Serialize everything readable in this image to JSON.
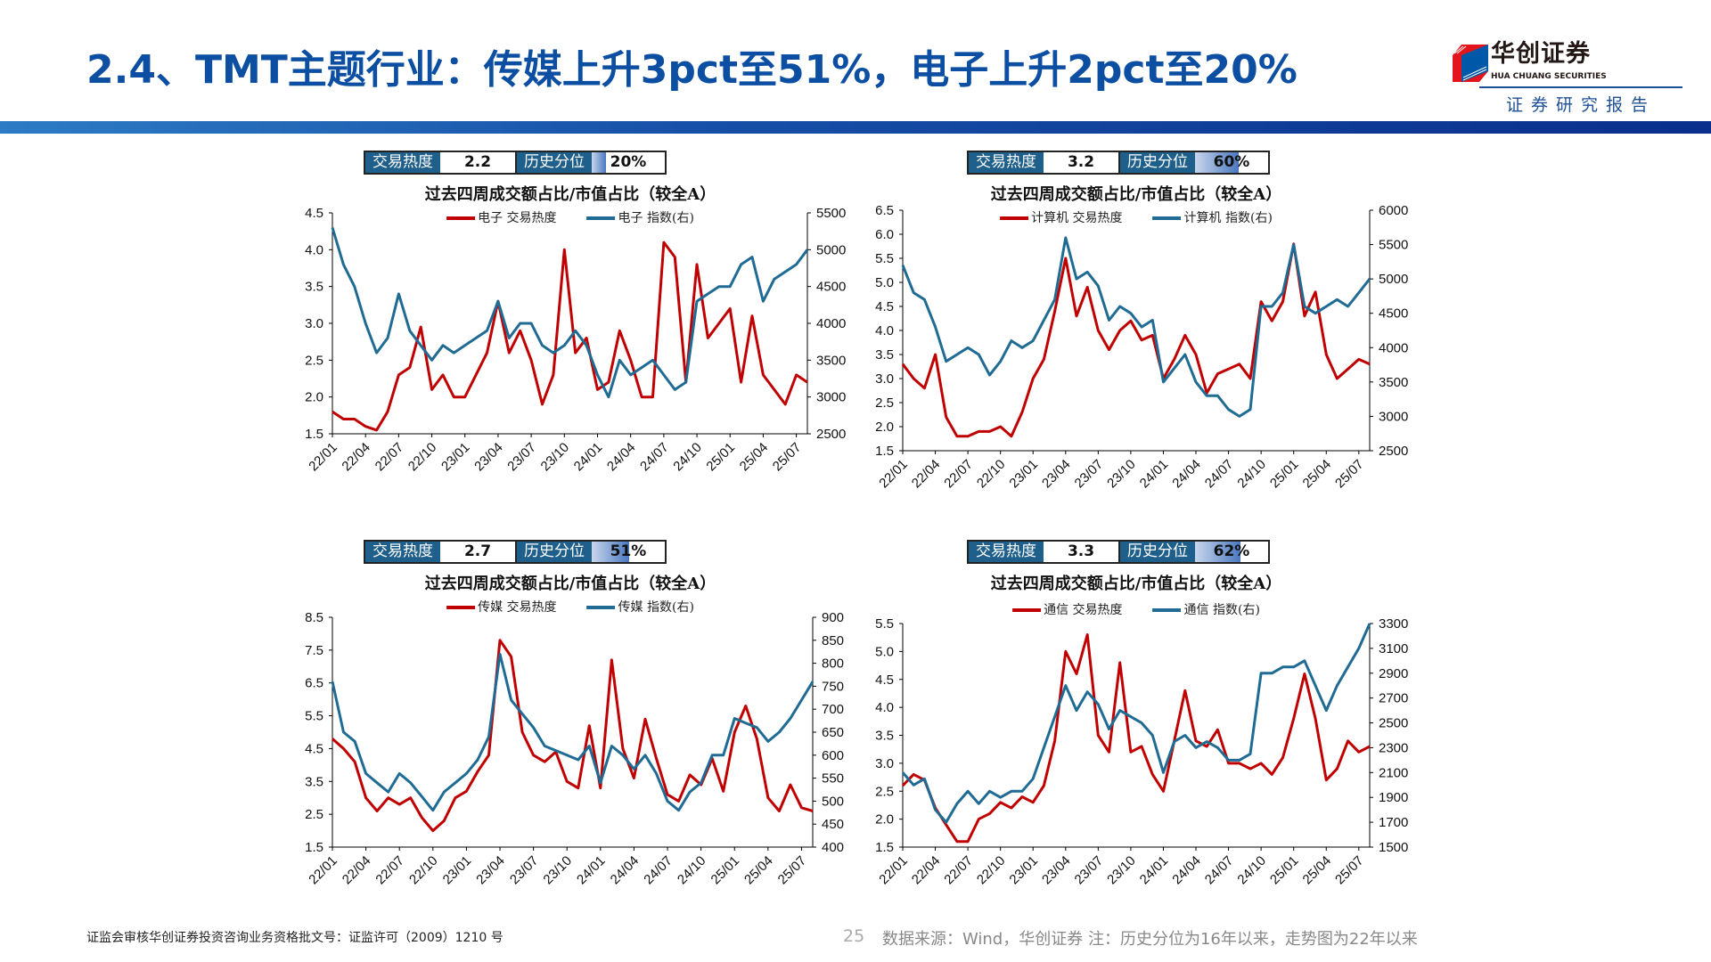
{
  "header": {
    "title": "2.4、TMT主题行业：传媒上升3pct至51%，电子上升2pct至20%",
    "logo_cn": "华创证券",
    "logo_en": "HUA CHUANG SECURITIES",
    "logo_sub": "证券研究报告"
  },
  "colors": {
    "title": "#0b4ea2",
    "heat_line": "#c00000",
    "index_line": "#1f6b94",
    "info_label_bg": "#1f5f8b"
  },
  "info_labels": {
    "heat": "交易热度",
    "percentile": "历史分位"
  },
  "footer": {
    "license": "证监会审核华创证券投资咨询业务资格批文号：证监许可（2009）1210 号",
    "page": "25",
    "source": "数据来源：Wind，华创证券  注：历史分位为16年以来，走势图为22年以来"
  },
  "chart_data": [
    {
      "type": "line",
      "heat": "2.2",
      "percentile": "20%",
      "percentile_value": 20,
      "title": "过去四周成交额占比/市值占比（较全A）",
      "x": [
        "22/01",
        "22/02",
        "22/03",
        "22/04",
        "22/05",
        "22/06",
        "22/07",
        "22/08",
        "22/09",
        "22/10",
        "22/11",
        "22/12",
        "23/01",
        "23/02",
        "23/03",
        "23/04",
        "23/05",
        "23/06",
        "23/07",
        "23/08",
        "23/09",
        "23/10",
        "23/11",
        "23/12",
        "24/01",
        "24/02",
        "24/03",
        "24/04",
        "24/05",
        "24/06",
        "24/07",
        "24/08",
        "24/09",
        "24/10",
        "24/11",
        "24/12",
        "25/01",
        "25/02",
        "25/03",
        "25/04",
        "25/05",
        "25/06",
        "25/07",
        "25/08"
      ],
      "x_ticks": [
        "22/01",
        "22/04",
        "22/07",
        "22/10",
        "23/01",
        "23/04",
        "23/07",
        "23/10",
        "24/01",
        "24/04",
        "24/07",
        "24/10",
        "25/01",
        "25/04",
        "25/07"
      ],
      "ylim": [
        1.5,
        4.5
      ],
      "y_ticks": [
        "1.5",
        "2.0",
        "2.5",
        "3.0",
        "3.5",
        "4.0",
        "4.5"
      ],
      "y2lim": [
        2500,
        5500
      ],
      "y2_ticks": [
        "2500",
        "3000",
        "3500",
        "4000",
        "4500",
        "5000",
        "5500"
      ],
      "series": [
        {
          "name": "电子 交易热度",
          "axis": "left",
          "color": "#c00000",
          "values": [
            1.8,
            1.7,
            1.7,
            1.6,
            1.55,
            1.8,
            2.3,
            2.4,
            2.95,
            2.1,
            2.3,
            2.0,
            2.0,
            2.3,
            2.6,
            3.3,
            2.6,
            2.9,
            2.5,
            1.9,
            2.3,
            4.0,
            2.6,
            2.8,
            2.1,
            2.2,
            2.9,
            2.5,
            2.0,
            2.0,
            4.1,
            3.9,
            2.2,
            3.8,
            2.8,
            3.0,
            3.2,
            2.2,
            3.1,
            2.3,
            2.1,
            1.9,
            2.3,
            2.2
          ]
        },
        {
          "name": "电子 指数(右)",
          "axis": "right",
          "color": "#1f6b94",
          "values": [
            5300,
            4800,
            4500,
            4000,
            3600,
            3800,
            4400,
            3900,
            3700,
            3500,
            3700,
            3600,
            3700,
            3800,
            3900,
            4300,
            3800,
            4000,
            4000,
            3700,
            3600,
            3700,
            3900,
            3700,
            3300,
            3000,
            3500,
            3300,
            3400,
            3500,
            3300,
            3100,
            3200,
            4300,
            4400,
            4500,
            4500,
            4800,
            4900,
            4300,
            4600,
            4700,
            4800,
            5000
          ]
        }
      ]
    },
    {
      "type": "line",
      "heat": "3.2",
      "percentile": "60%",
      "percentile_value": 60,
      "title": "过去四周成交额占比/市值占比（较全A）",
      "x": [
        "22/01",
        "22/02",
        "22/03",
        "22/04",
        "22/05",
        "22/06",
        "22/07",
        "22/08",
        "22/09",
        "22/10",
        "22/11",
        "22/12",
        "23/01",
        "23/02",
        "23/03",
        "23/04",
        "23/05",
        "23/06",
        "23/07",
        "23/08",
        "23/09",
        "23/10",
        "23/11",
        "23/12",
        "24/01",
        "24/02",
        "24/03",
        "24/04",
        "24/05",
        "24/06",
        "24/07",
        "24/08",
        "24/09",
        "24/10",
        "24/11",
        "24/12",
        "25/01",
        "25/02",
        "25/03",
        "25/04",
        "25/05",
        "25/06",
        "25/07",
        "25/08"
      ],
      "x_ticks": [
        "22/01",
        "22/04",
        "22/07",
        "22/10",
        "23/01",
        "23/04",
        "23/07",
        "23/10",
        "24/01",
        "24/04",
        "24/07",
        "24/10",
        "25/01",
        "25/04",
        "25/07"
      ],
      "ylim": [
        1.5,
        6.5
      ],
      "y_ticks": [
        "1.5",
        "2.0",
        "2.5",
        "3.0",
        "3.5",
        "4.0",
        "4.5",
        "5.0",
        "5.5",
        "6.0",
        "6.5"
      ],
      "y2lim": [
        2500,
        6000
      ],
      "y2_ticks": [
        "2500",
        "3000",
        "3500",
        "4000",
        "4500",
        "5000",
        "5500",
        "6000"
      ],
      "series": [
        {
          "name": "计算机 交易热度",
          "axis": "left",
          "color": "#c00000",
          "values": [
            3.3,
            3.0,
            2.8,
            3.5,
            2.2,
            1.8,
            1.8,
            1.9,
            1.9,
            2.0,
            1.8,
            2.3,
            3.0,
            3.4,
            4.4,
            5.5,
            4.3,
            4.9,
            4.0,
            3.6,
            4.0,
            4.2,
            3.8,
            3.9,
            3.0,
            3.4,
            3.9,
            3.5,
            2.7,
            3.1,
            3.2,
            3.3,
            3.0,
            4.6,
            4.2,
            4.6,
            5.8,
            4.3,
            4.8,
            3.5,
            3.0,
            3.2,
            3.4,
            3.3
          ]
        },
        {
          "name": "计算机 指数(右)",
          "axis": "right",
          "color": "#1f6b94",
          "values": [
            5200,
            4800,
            4700,
            4300,
            3800,
            3900,
            4000,
            3900,
            3600,
            3800,
            4100,
            4000,
            4100,
            4400,
            4700,
            5600,
            5000,
            5100,
            4900,
            4400,
            4600,
            4500,
            4300,
            4400,
            3500,
            3700,
            3900,
            3500,
            3300,
            3300,
            3100,
            3000,
            3100,
            4600,
            4600,
            4800,
            5500,
            4600,
            4500,
            4600,
            4700,
            4600,
            4800,
            5000
          ]
        }
      ]
    },
    {
      "type": "line",
      "heat": "2.7",
      "percentile": "51%",
      "percentile_value": 51,
      "title": "过去四周成交额占比/市值占比（较全A）",
      "x": [
        "22/01",
        "22/02",
        "22/03",
        "22/04",
        "22/05",
        "22/06",
        "22/07",
        "22/08",
        "22/09",
        "22/10",
        "22/11",
        "22/12",
        "23/01",
        "23/02",
        "23/03",
        "23/04",
        "23/05",
        "23/06",
        "23/07",
        "23/08",
        "23/09",
        "23/10",
        "23/11",
        "23/12",
        "24/01",
        "24/02",
        "24/03",
        "24/04",
        "24/05",
        "24/06",
        "24/07",
        "24/08",
        "24/09",
        "24/10",
        "24/11",
        "24/12",
        "25/01",
        "25/02",
        "25/03",
        "25/04",
        "25/05",
        "25/06",
        "25/07",
        "25/08"
      ],
      "x_ticks": [
        "22/01",
        "22/04",
        "22/07",
        "22/10",
        "23/01",
        "23/04",
        "23/07",
        "23/10",
        "24/01",
        "24/04",
        "24/07",
        "24/10",
        "25/01",
        "25/04",
        "25/07"
      ],
      "ylim": [
        1.5,
        8.5
      ],
      "y_ticks": [
        "1.5",
        "2.5",
        "3.5",
        "4.5",
        "5.5",
        "6.5",
        "7.5",
        "8.5"
      ],
      "y2lim": [
        400,
        900
      ],
      "y2_ticks": [
        "400",
        "450",
        "500",
        "550",
        "600",
        "650",
        "700",
        "750",
        "800",
        "850",
        "900"
      ],
      "series": [
        {
          "name": "传媒 交易热度",
          "axis": "left",
          "color": "#c00000",
          "values": [
            4.8,
            4.5,
            4.1,
            3.0,
            2.6,
            3.0,
            2.8,
            3.0,
            2.4,
            2.0,
            2.3,
            3.0,
            3.2,
            3.8,
            4.3,
            7.8,
            7.3,
            5.0,
            4.3,
            4.1,
            4.4,
            3.5,
            3.3,
            5.2,
            3.3,
            7.2,
            4.5,
            3.6,
            5.4,
            4.2,
            3.1,
            2.9,
            3.7,
            3.4,
            4.2,
            3.2,
            5.0,
            5.8,
            4.8,
            3.0,
            2.6,
            3.4,
            2.7,
            2.6
          ]
        },
        {
          "name": "传媒 指数(右)",
          "axis": "right",
          "color": "#1f6b94",
          "values": [
            760,
            650,
            630,
            560,
            540,
            520,
            560,
            540,
            510,
            480,
            520,
            540,
            560,
            590,
            640,
            820,
            720,
            690,
            660,
            620,
            610,
            600,
            590,
            620,
            540,
            620,
            600,
            570,
            600,
            560,
            500,
            480,
            520,
            540,
            600,
            600,
            680,
            670,
            660,
            630,
            650,
            680,
            720,
            760
          ]
        }
      ]
    },
    {
      "type": "line",
      "heat": "3.3",
      "percentile": "62%",
      "percentile_value": 62,
      "title": "过去四周成交额占比/市值占比（较全A）",
      "x": [
        "22/01",
        "22/02",
        "22/03",
        "22/04",
        "22/05",
        "22/06",
        "22/07",
        "22/08",
        "22/09",
        "22/10",
        "22/11",
        "22/12",
        "23/01",
        "23/02",
        "23/03",
        "23/04",
        "23/05",
        "23/06",
        "23/07",
        "23/08",
        "23/09",
        "23/10",
        "23/11",
        "23/12",
        "24/01",
        "24/02",
        "24/03",
        "24/04",
        "24/05",
        "24/06",
        "24/07",
        "24/08",
        "24/09",
        "24/10",
        "24/11",
        "24/12",
        "25/01",
        "25/02",
        "25/03",
        "25/04",
        "25/05",
        "25/06",
        "25/07",
        "25/08"
      ],
      "x_ticks": [
        "22/01",
        "22/04",
        "22/07",
        "22/10",
        "23/01",
        "23/04",
        "23/07",
        "23/10",
        "24/01",
        "24/04",
        "24/07",
        "24/10",
        "25/01",
        "25/04",
        "25/07"
      ],
      "ylim": [
        1.5,
        5.5
      ],
      "y_ticks": [
        "1.5",
        "2.0",
        "2.5",
        "3.0",
        "3.5",
        "4.0",
        "4.5",
        "5.0",
        "5.5"
      ],
      "y2lim": [
        1500,
        3300
      ],
      "y2_ticks": [
        "1500",
        "1700",
        "1900",
        "2100",
        "2300",
        "2500",
        "2700",
        "2900",
        "3100",
        "3300"
      ],
      "series": [
        {
          "name": "通信 交易热度",
          "axis": "left",
          "color": "#c00000",
          "values": [
            2.6,
            2.8,
            2.7,
            2.2,
            1.9,
            1.6,
            1.6,
            2.0,
            2.1,
            2.3,
            2.2,
            2.4,
            2.3,
            2.6,
            3.4,
            5.0,
            4.6,
            5.3,
            3.5,
            3.2,
            4.8,
            3.2,
            3.3,
            2.8,
            2.5,
            3.4,
            4.3,
            3.4,
            3.3,
            3.6,
            3.0,
            3.0,
            2.9,
            3.0,
            2.8,
            3.1,
            3.8,
            4.6,
            3.8,
            2.7,
            2.9,
            3.4,
            3.2,
            3.3
          ]
        },
        {
          "name": "通信 指数(右)",
          "axis": "right",
          "color": "#1f6b94",
          "values": [
            2100,
            2000,
            2050,
            1800,
            1700,
            1850,
            1950,
            1850,
            1950,
            1900,
            1950,
            1950,
            2050,
            2300,
            2550,
            2800,
            2600,
            2750,
            2650,
            2450,
            2600,
            2550,
            2500,
            2400,
            2100,
            2350,
            2400,
            2300,
            2350,
            2300,
            2200,
            2200,
            2250,
            2900,
            2900,
            2950,
            2950,
            3000,
            2800,
            2600,
            2800,
            2950,
            3100,
            3300
          ]
        }
      ]
    }
  ]
}
